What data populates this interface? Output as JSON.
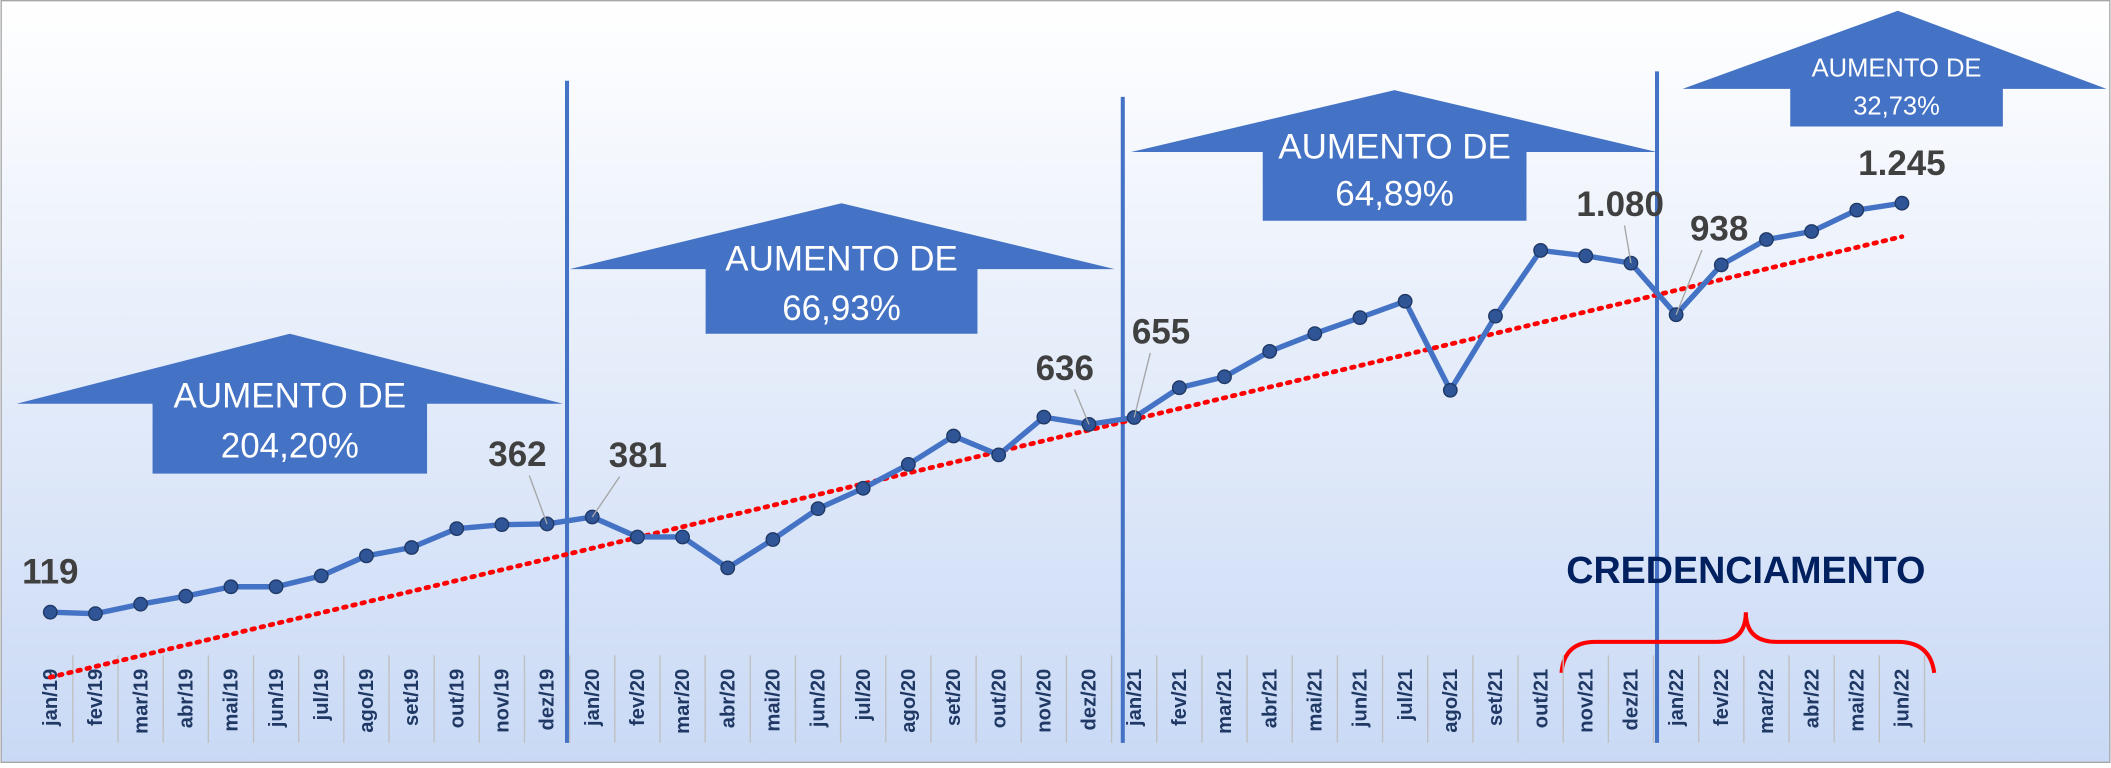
{
  "chart_data": {
    "type": "line",
    "categories": [
      "jan/19",
      "fev/19",
      "mar/19",
      "abr/19",
      "mai/19",
      "jun/19",
      "jul/19",
      "ago/19",
      "set/19",
      "out/19",
      "nov/19",
      "dez/19",
      "jan/20",
      "fev/20",
      "mar/20",
      "abr/20",
      "mai/20",
      "jun/20",
      "jul/20",
      "ago/20",
      "set/20",
      "out/20",
      "nov/20",
      "dez/20",
      "jan/21",
      "fev/21",
      "mar/21",
      "abr/21",
      "mai/21",
      "jun/21",
      "jul/21",
      "ago/21",
      "set/21",
      "out/21",
      "nov/21",
      "dez/21",
      "jan/22",
      "fev/22",
      "mar/22",
      "abr/22",
      "mai/22",
      "jun/22"
    ],
    "series": [
      {
        "name": null,
        "color": "#4472c4",
        "values": [
          119,
          115,
          141,
          163,
          189,
          189,
          219,
          274,
          297,
          349,
          360,
          362,
          381,
          326,
          326,
          241,
          319,
          404,
          460,
          526,
          604,
          552,
          656,
          636,
          655,
          737,
          767,
          837,
          886,
          930,
          975,
          730,
          934,
          1115,
          1100,
          1080,
          938,
          1075,
          1145,
          1167,
          1226,
          1245
        ],
        "value_labels": [
          "119",
          null,
          null,
          null,
          null,
          null,
          null,
          null,
          null,
          null,
          null,
          "362",
          "381",
          null,
          null,
          null,
          null,
          null,
          null,
          null,
          null,
          null,
          null,
          "636",
          "655",
          null,
          null,
          null,
          null,
          null,
          null,
          null,
          null,
          null,
          null,
          "1.080",
          "938",
          null,
          null,
          null,
          null,
          "1.245"
        ]
      }
    ],
    "trendline_color": "#ff0000",
    "annotations": [
      [
        "AUMENTO DE",
        "204,20%"
      ],
      [
        "AUMENTO DE",
        "66,93%"
      ],
      [
        "AUMENTO DE",
        "64,89%"
      ],
      [
        "AUMENTO DE",
        "32,73%"
      ]
    ],
    "bracket_label": "CREDENCIAMENTO"
  }
}
